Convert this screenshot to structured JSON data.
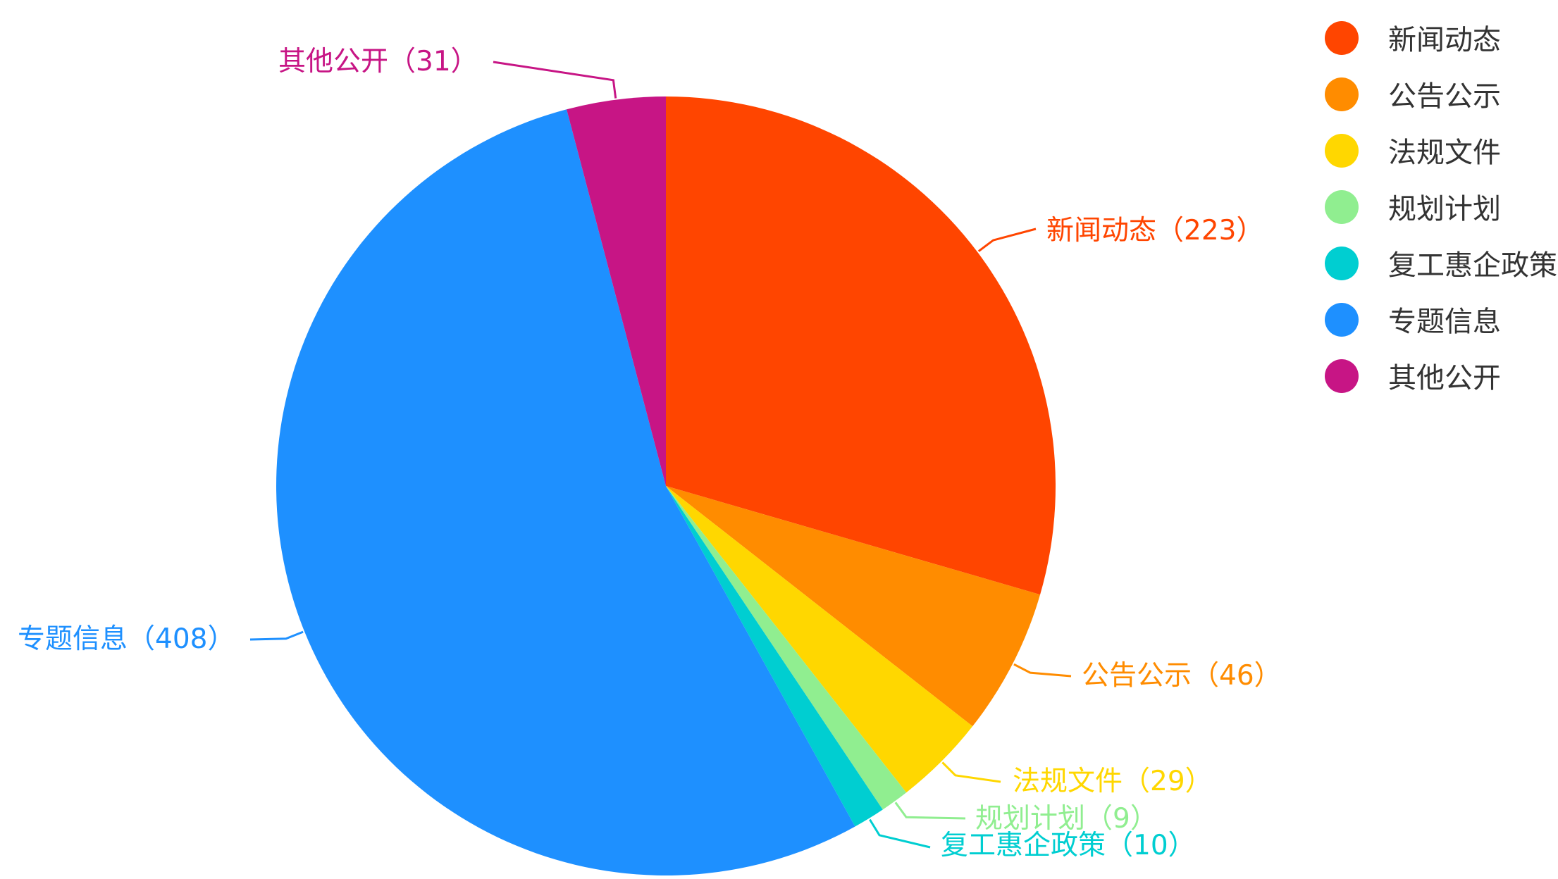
{
  "chart_data": {
    "type": "pie",
    "categories": [
      "新闻动态",
      "公告公示",
      "法规文件",
      "规划计划",
      "复工惠企政策",
      "专题信息",
      "其他公开"
    ],
    "values": [
      223,
      46,
      29,
      9,
      10,
      408,
      31
    ],
    "labels": [
      "新闻动态（223）",
      "公告公示（46）",
      "法规文件（29）",
      "规划计划（9）",
      "复工惠企政策（10）",
      "专题信息（408）",
      "其他公开（31）"
    ],
    "colors": [
      "#ff4500",
      "#ff8c00",
      "#ffd700",
      "#90ee90",
      "#00ced1",
      "#1e90ff",
      "#c71585"
    ],
    "legend_position": "top-right",
    "start_angle": "12 o'clock, clockwise"
  }
}
